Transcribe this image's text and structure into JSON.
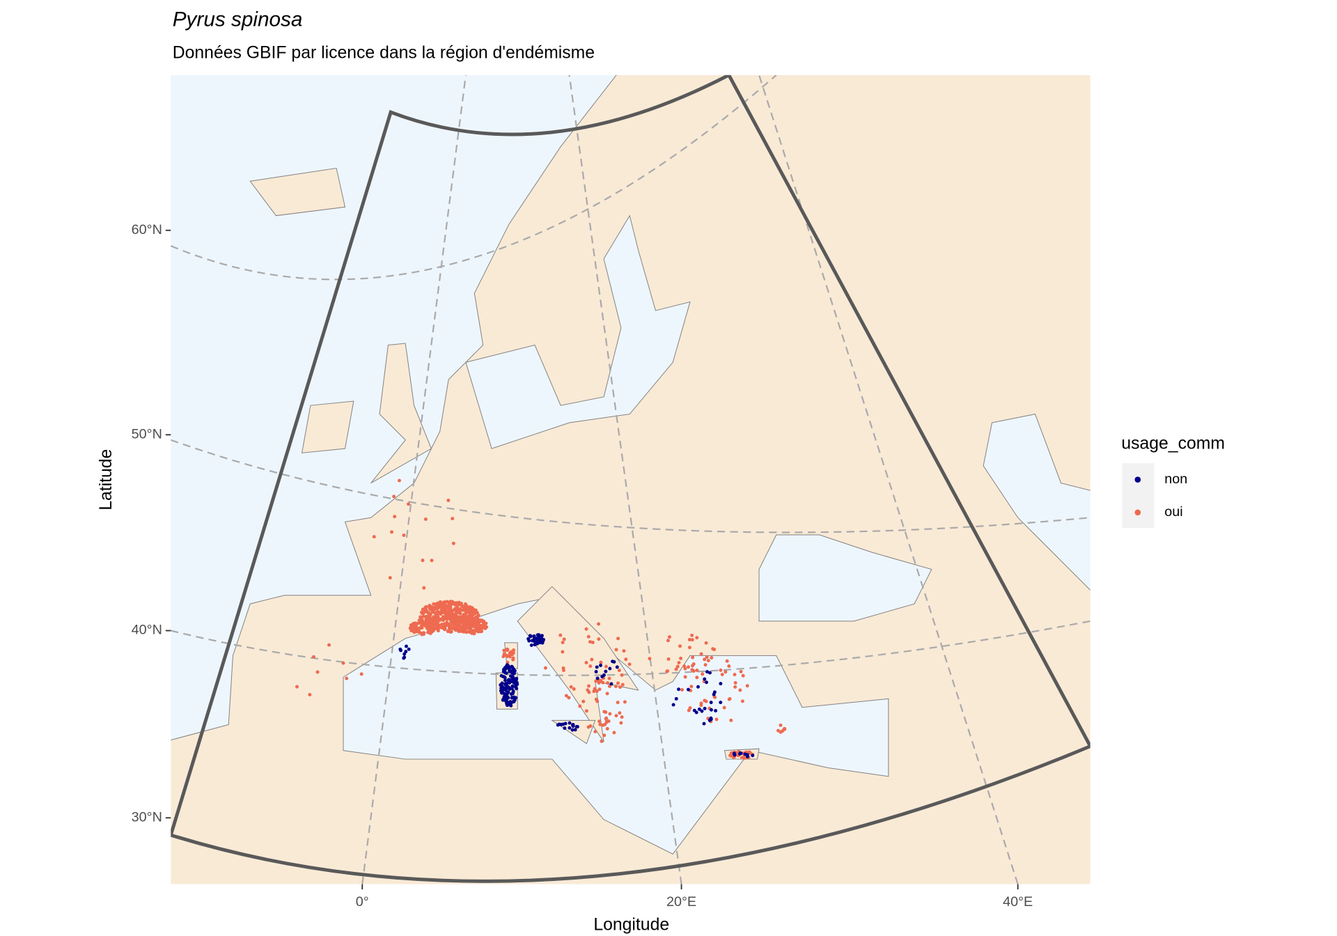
{
  "chart_data": {
    "type": "map",
    "title": "Pyrus spinosa",
    "subtitle": "Données GBIF par licence dans la région d'endémisme",
    "x_label": "Longitude",
    "y_label": "Latitude",
    "xticks": [
      {
        "value": 0,
        "label": "0°"
      },
      {
        "value": 20,
        "label": "20°E"
      },
      {
        "value": 40,
        "label": "40°E"
      }
    ],
    "yticks": [
      {
        "value": 30,
        "label": "30°N"
      },
      {
        "value": 40,
        "label": "40°N"
      },
      {
        "value": 50,
        "label": "50°N"
      },
      {
        "value": 60,
        "label": "60°N"
      }
    ],
    "legend": {
      "title": "usage_comm",
      "items": [
        {
          "name": "non",
          "color": "#00008b"
        },
        {
          "name": "oui",
          "color": "#ee6a50"
        }
      ]
    }
  }
}
